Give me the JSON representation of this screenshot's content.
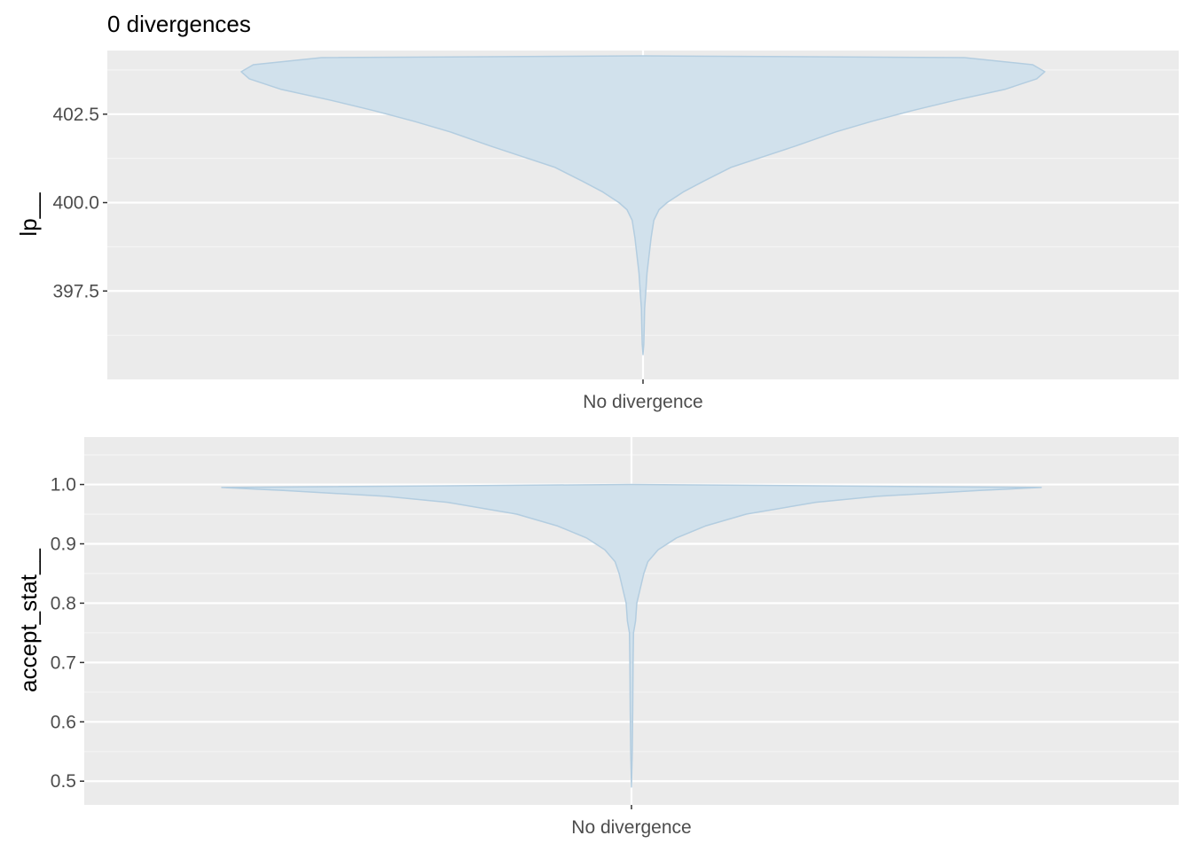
{
  "figure": {
    "title": "0 divergences",
    "colors": {
      "panel_background": "#ebebeb",
      "grid_major": "#ffffff",
      "grid_minor": "#f5f5f5",
      "violin_fill": "#d1e1ec",
      "violin_outline": "#b3cde0",
      "tick_label": "#4d4d4d",
      "axis_title": "#000000"
    }
  },
  "chart_data": [
    {
      "type": "violin",
      "xlabel": "",
      "ylabel": "lp__",
      "categories": [
        "No divergence"
      ],
      "ylim": [
        395.0,
        404.3
      ],
      "yticks": [
        397.5,
        400.0,
        402.5
      ],
      "ytick_labels": [
        "397.5",
        "400.0",
        "402.5"
      ],
      "grid": true,
      "violin_width_profile": [
        [
          395.7,
          0.0
        ],
        [
          396.0,
          0.002
        ],
        [
          396.5,
          0.003
        ],
        [
          397.0,
          0.004
        ],
        [
          397.5,
          0.007
        ],
        [
          398.0,
          0.01
        ],
        [
          398.5,
          0.015
        ],
        [
          399.0,
          0.02
        ],
        [
          399.5,
          0.027
        ],
        [
          399.8,
          0.04
        ],
        [
          400.0,
          0.06
        ],
        [
          400.3,
          0.1
        ],
        [
          400.6,
          0.15
        ],
        [
          401.0,
          0.22
        ],
        [
          401.3,
          0.3
        ],
        [
          401.6,
          0.38
        ],
        [
          402.0,
          0.48
        ],
        [
          402.3,
          0.57
        ],
        [
          402.6,
          0.67
        ],
        [
          402.9,
          0.78
        ],
        [
          403.2,
          0.9
        ],
        [
          403.5,
          0.98
        ],
        [
          403.7,
          1.0
        ],
        [
          403.9,
          0.97
        ],
        [
          404.1,
          0.8
        ],
        [
          404.15,
          0.0
        ]
      ]
    },
    {
      "type": "violin",
      "xlabel": "",
      "ylabel": "accept_stat__",
      "categories": [
        "No divergence"
      ],
      "ylim": [
        0.46,
        1.08
      ],
      "yticks": [
        0.5,
        0.6,
        0.7,
        0.8,
        0.9,
        1.0
      ],
      "ytick_labels": [
        "0.5",
        "0.6",
        "0.7",
        "0.8",
        "0.9",
        "1.0"
      ],
      "grid": true,
      "violin_width_profile": [
        [
          0.49,
          0.0
        ],
        [
          0.55,
          0.002
        ],
        [
          0.62,
          0.003
        ],
        [
          0.7,
          0.004
        ],
        [
          0.75,
          0.005
        ],
        [
          0.77,
          0.01
        ],
        [
          0.8,
          0.013
        ],
        [
          0.82,
          0.02
        ],
        [
          0.85,
          0.03
        ],
        [
          0.87,
          0.04
        ],
        [
          0.89,
          0.065
        ],
        [
          0.91,
          0.11
        ],
        [
          0.93,
          0.18
        ],
        [
          0.95,
          0.28
        ],
        [
          0.97,
          0.45
        ],
        [
          0.98,
          0.6
        ],
        [
          0.99,
          0.85
        ],
        [
          0.995,
          1.0
        ],
        [
          1.0,
          0.0
        ]
      ]
    }
  ]
}
